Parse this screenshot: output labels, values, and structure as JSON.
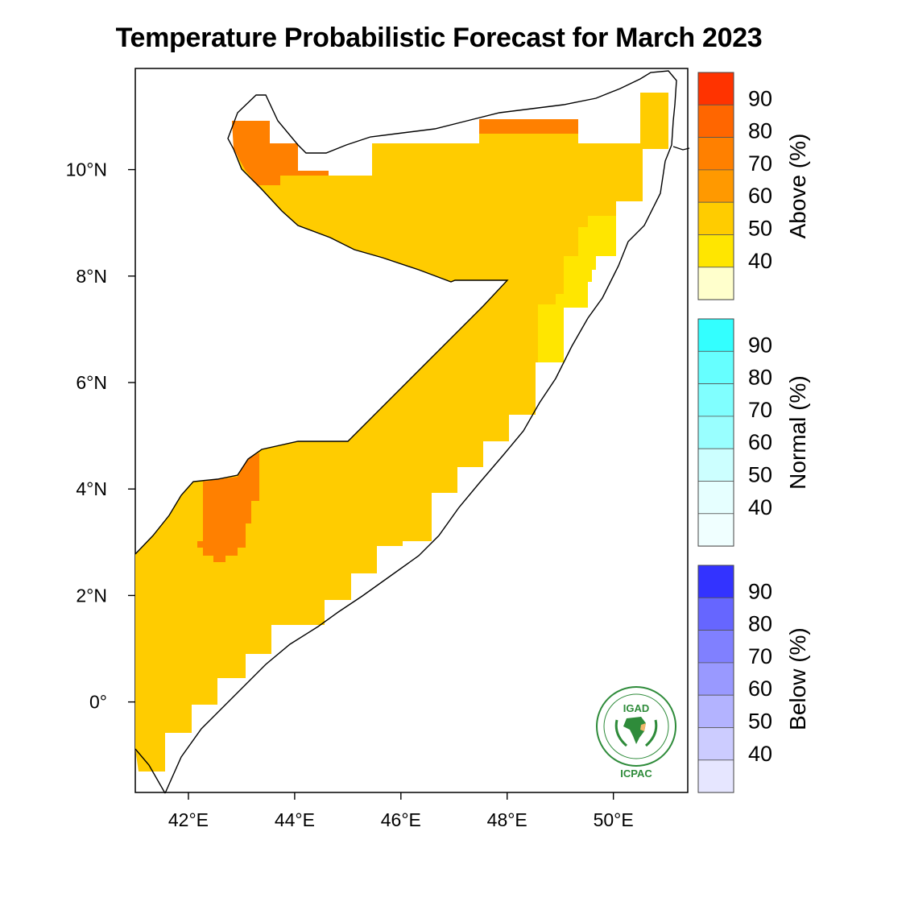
{
  "title": "Temperature Probabilistic Forecast for March 2023",
  "map": {
    "lon_range": [
      41.0,
      51.4
    ],
    "lat_range": [
      -1.7,
      11.9
    ],
    "x_ticks": [
      {
        "value": 42,
        "label": "42°E"
      },
      {
        "value": 44,
        "label": "44°E"
      },
      {
        "value": 46,
        "label": "46°E"
      },
      {
        "value": 48,
        "label": "48°E"
      },
      {
        "value": 50,
        "label": "50°E"
      }
    ],
    "y_ticks": [
      {
        "value": 10,
        "label": "10°N"
      },
      {
        "value": 8,
        "label": "8°N"
      },
      {
        "value": 6,
        "label": "6°N"
      },
      {
        "value": 4,
        "label": "4°N"
      },
      {
        "value": 2,
        "label": "2°N"
      },
      {
        "value": 0,
        "label": "0°"
      }
    ],
    "regions": [
      {
        "category": "Above",
        "probability_bin": "50-60",
        "color": "#ffcc00"
      },
      {
        "category": "Above",
        "probability_bin": "40-50",
        "color": "#ffe600"
      },
      {
        "category": "Above",
        "probability_bin": "70-80",
        "color": "#ff7f00"
      }
    ]
  },
  "colorbars": [
    {
      "title": "Above (%)",
      "levels": [
        "90",
        "80",
        "70",
        "60",
        "50",
        "40"
      ],
      "colors": [
        "#ff3300",
        "#ff6600",
        "#ff8000",
        "#ff9900",
        "#ffcc00",
        "#ffe600",
        "#ffffcc"
      ]
    },
    {
      "title": "Normal (%)",
      "levels": [
        "90",
        "80",
        "70",
        "60",
        "50",
        "40"
      ],
      "colors": [
        "#33ffff",
        "#66ffff",
        "#80ffff",
        "#99ffff",
        "#ccffff",
        "#e6ffff",
        "#f0ffff"
      ]
    },
    {
      "title": "Below (%)",
      "levels": [
        "90",
        "80",
        "70",
        "60",
        "50",
        "40"
      ],
      "colors": [
        "#3333ff",
        "#6666ff",
        "#8080ff",
        "#9999ff",
        "#b3b3ff",
        "#ccccff",
        "#e6e6ff"
      ]
    }
  ],
  "logo": {
    "name": "IGAD",
    "sub": "ICPAC"
  }
}
